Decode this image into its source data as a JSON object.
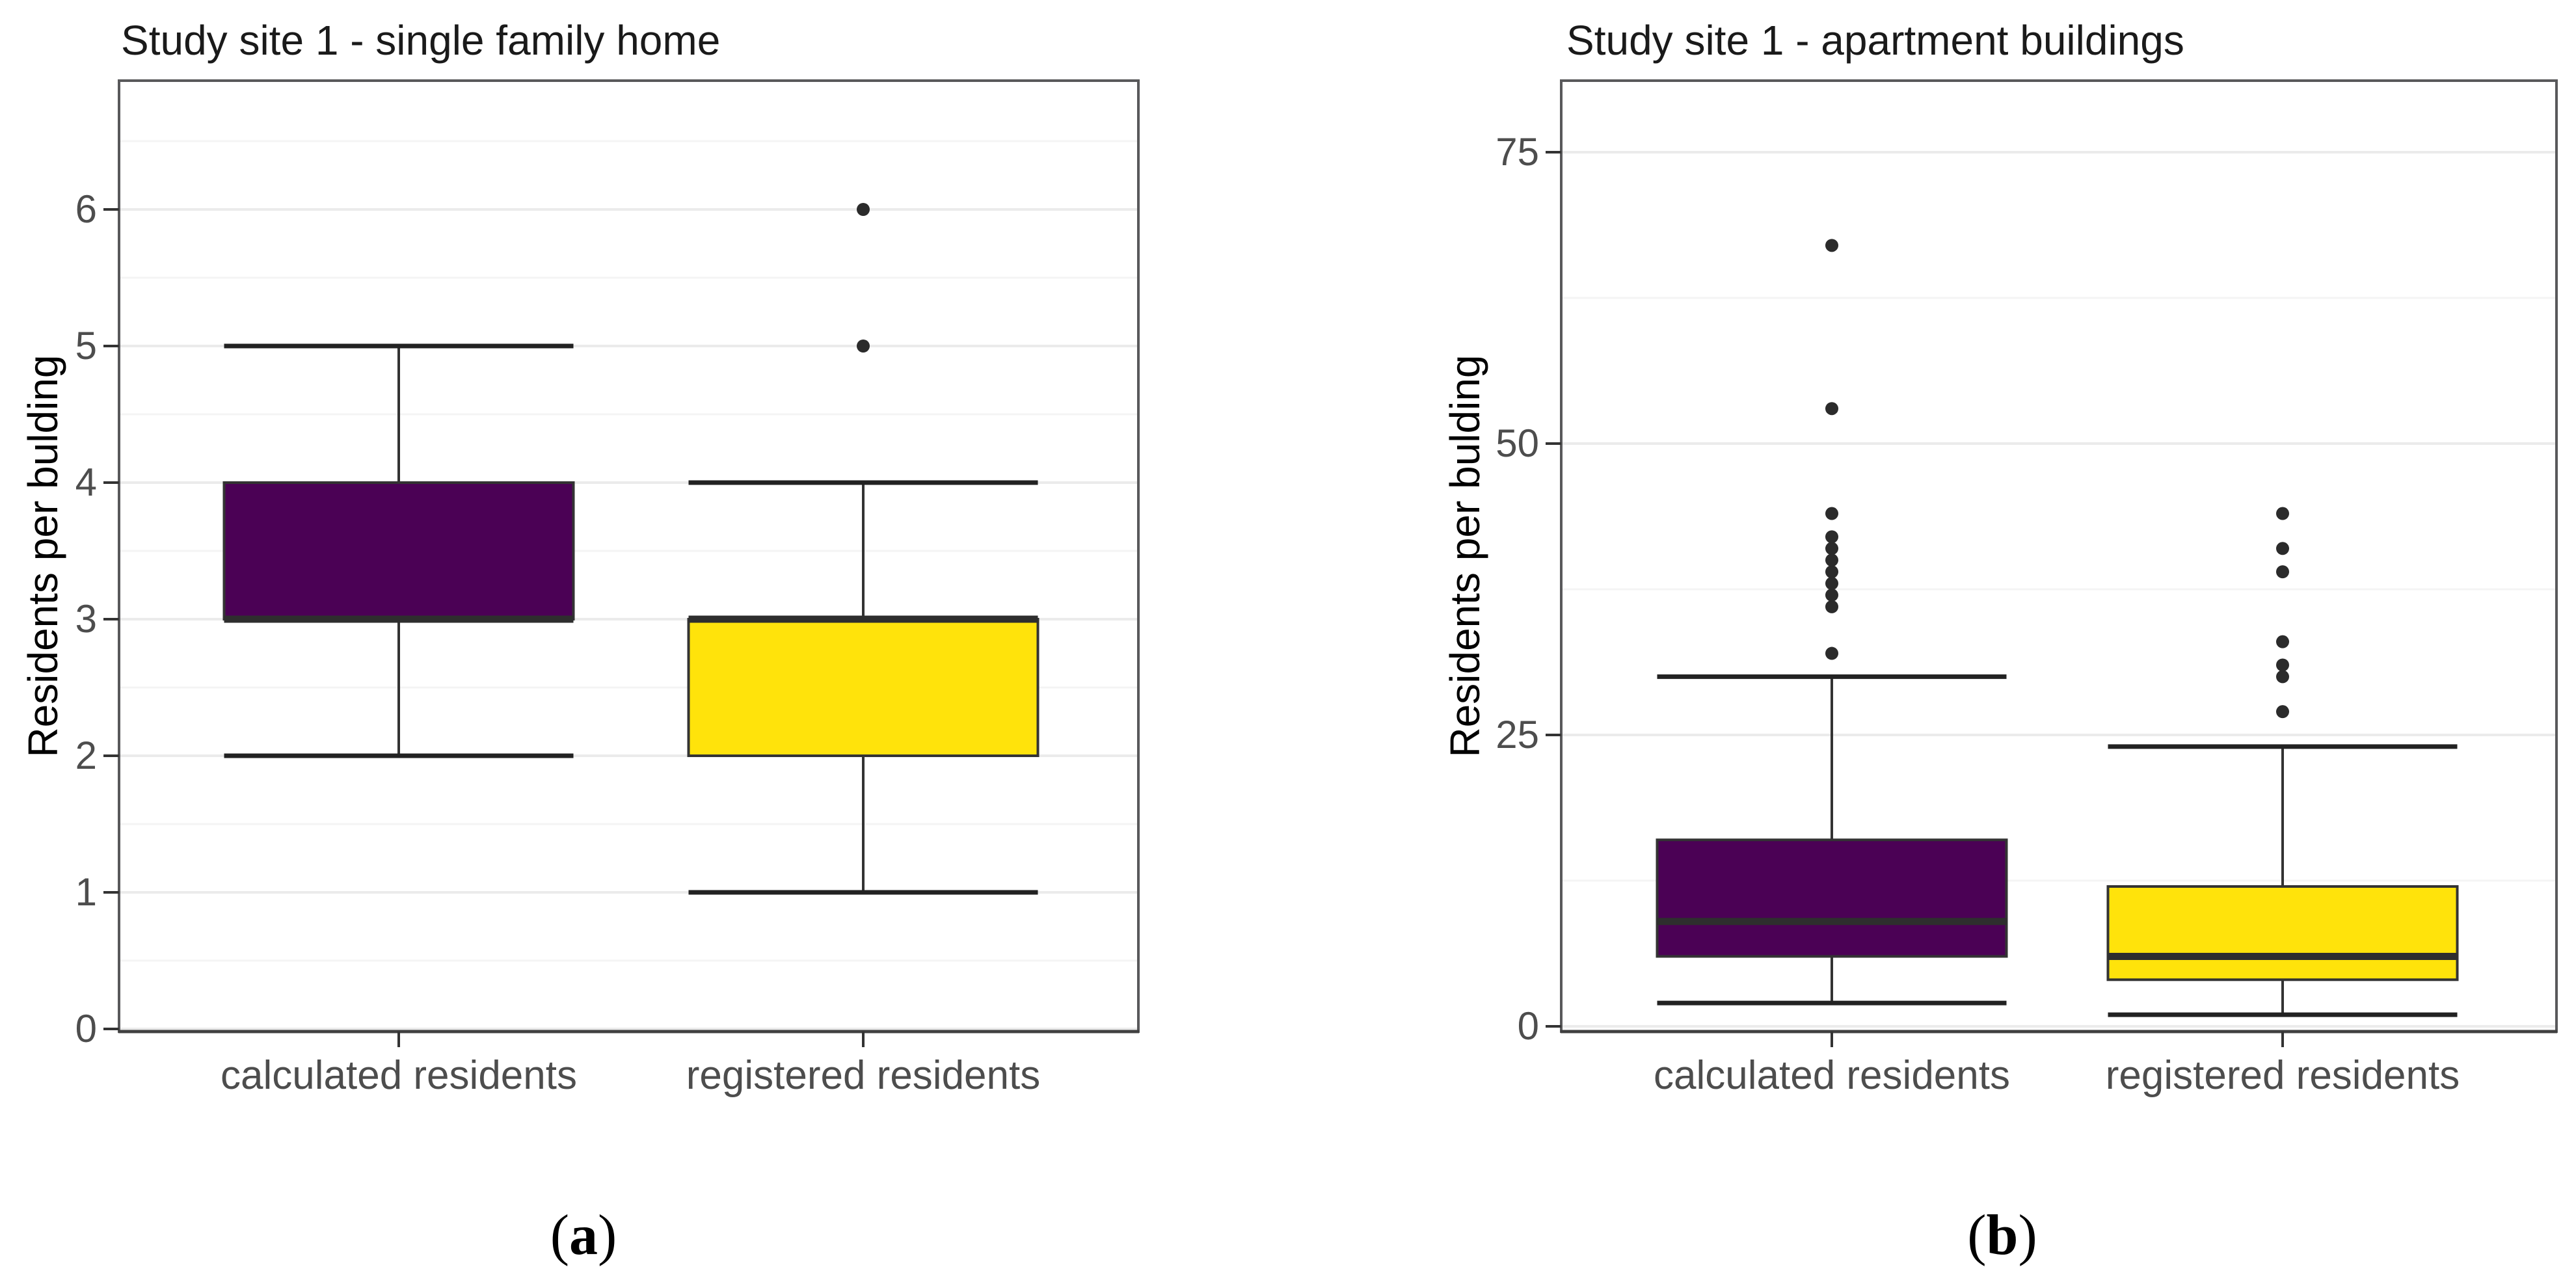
{
  "captions": {
    "open": "(",
    "close": ")",
    "a": "a",
    "b": "b"
  },
  "colors": {
    "purple": "#4B0155",
    "yellow": "#FFE30B",
    "box_border": "#333333",
    "median": "#2E2E2E",
    "whisker": "#333333",
    "whisker_cap": "#222222",
    "outlier": "#2B2B2B",
    "panel_border": "#59595B",
    "axis_line": "#404040",
    "grid_major": "#EBEBEB",
    "grid_minor": "#F4F4F4",
    "tick_mark": "#333333",
    "tick_label": "#4D4D4D",
    "title": "#1A1A1A"
  },
  "chart_data": [
    {
      "type": "boxplot",
      "title": "Study site 1 - single family home",
      "ylabel": "Residents per bulding",
      "xlabel": "",
      "categories": [
        "calculated residents",
        "registered residents"
      ],
      "yticks": [
        0,
        1,
        2,
        3,
        4,
        5,
        6
      ],
      "ylim": [
        0,
        6.95
      ],
      "grid": "major and minor horizontal, very light gray",
      "legend": "none",
      "series": [
        {
          "name": "calculated residents",
          "fill": "purple",
          "whisker_low": 2,
          "q1": 3,
          "median": 3,
          "q3": 4,
          "whisker_high": 5,
          "outliers": []
        },
        {
          "name": "registered residents",
          "fill": "yellow",
          "whisker_low": 1,
          "q1": 2,
          "median": 3,
          "q3": 3,
          "whisker_high": 4,
          "outliers": [
            5,
            6
          ]
        }
      ]
    },
    {
      "type": "boxplot",
      "title": "Study site 1 - apartment buildings",
      "ylabel": "Residents per bulding",
      "xlabel": "",
      "categories": [
        "calculated residents",
        "registered residents"
      ],
      "yticks": [
        0,
        25,
        50,
        75
      ],
      "ylim": [
        -0.5,
        81.5
      ],
      "grid": "major and minor horizontal, very light gray",
      "legend": "none",
      "series": [
        {
          "name": "calculated residents",
          "fill": "purple",
          "whisker_low": 2,
          "q1": 6,
          "median": 9,
          "q3": 16,
          "whisker_high": 30,
          "outliers": [
            32,
            36,
            37,
            38,
            39,
            40,
            41,
            42,
            44,
            53,
            67
          ]
        },
        {
          "name": "registered residents",
          "fill": "yellow",
          "whisker_low": 1,
          "q1": 4,
          "median": 6,
          "q3": 12,
          "whisker_high": 24,
          "outliers": [
            27,
            30,
            31,
            33,
            39,
            41,
            44
          ]
        }
      ]
    }
  ]
}
